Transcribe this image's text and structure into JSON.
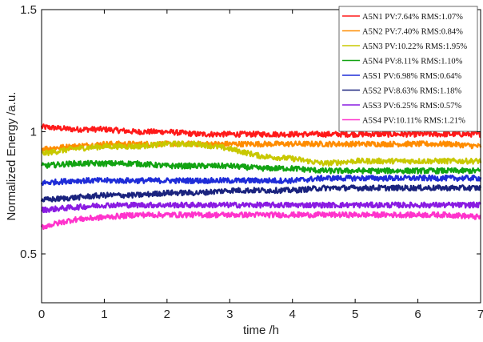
{
  "chart_data": {
    "type": "line",
    "xlabel": "time /h",
    "ylabel": "Normalized Energy /a.u.",
    "xlim": [
      0,
      7
    ],
    "ylim": [
      0.3,
      1.5
    ],
    "xticks": [
      "0",
      "1",
      "2",
      "3",
      "4",
      "5",
      "6",
      "7"
    ],
    "yticks": [
      "0.5",
      "1",
      "1.5"
    ],
    "yticks_values": [
      0.5,
      1,
      1.5
    ],
    "grid": false,
    "legend_position": "top-right",
    "x": [
      0,
      0.5,
      1,
      1.5,
      2,
      2.5,
      3,
      3.5,
      4,
      4.5,
      5,
      5.5,
      6,
      6.5,
      7
    ],
    "series": [
      {
        "name": "A5N1 PV:7.64%  RMS:1.07%",
        "color": "#ff1a1a",
        "values": [
          1.02,
          1.01,
          1.01,
          1.0,
          1.0,
          0.99,
          0.99,
          0.99,
          0.99,
          0.99,
          0.99,
          0.99,
          0.99,
          0.99,
          0.99
        ]
      },
      {
        "name": "A5N2 PV:7.40%  RMS:0.84%",
        "color": "#ff8c00",
        "values": [
          0.93,
          0.94,
          0.95,
          0.95,
          0.95,
          0.95,
          0.95,
          0.95,
          0.95,
          0.95,
          0.95,
          0.95,
          0.95,
          0.95,
          0.94
        ]
      },
      {
        "name": "A5N3 PV:10.22% RMS:1.95%",
        "color": "#c8c800",
        "values": [
          0.91,
          0.93,
          0.94,
          0.94,
          0.95,
          0.95,
          0.93,
          0.9,
          0.89,
          0.87,
          0.88,
          0.88,
          0.88,
          0.88,
          0.88
        ]
      },
      {
        "name": "A5N4 PV:8.11%  RMS:1.10%",
        "color": "#12a312",
        "values": [
          0.86,
          0.87,
          0.87,
          0.87,
          0.86,
          0.86,
          0.86,
          0.85,
          0.85,
          0.84,
          0.84,
          0.84,
          0.84,
          0.84,
          0.84
        ]
      },
      {
        "name": "A5S1 PV:6.98%  RMS:0.64%",
        "color": "#1f2dd8",
        "values": [
          0.79,
          0.8,
          0.8,
          0.8,
          0.8,
          0.8,
          0.8,
          0.8,
          0.8,
          0.81,
          0.81,
          0.81,
          0.81,
          0.81,
          0.81
        ]
      },
      {
        "name": "A5S2 PV:8.63%  RMS:1.18%",
        "color": "#1a237e",
        "values": [
          0.72,
          0.73,
          0.74,
          0.74,
          0.75,
          0.75,
          0.76,
          0.76,
          0.76,
          0.77,
          0.77,
          0.77,
          0.77,
          0.77,
          0.77
        ]
      },
      {
        "name": "A5S3 PV:6.25%  RMS:0.57%",
        "color": "#8a1be2",
        "values": [
          0.68,
          0.69,
          0.7,
          0.7,
          0.7,
          0.7,
          0.7,
          0.7,
          0.7,
          0.7,
          0.7,
          0.7,
          0.7,
          0.7,
          0.7
        ]
      },
      {
        "name": "A5S4 PV:10.11% RMS:1.21%",
        "color": "#ff33cc",
        "values": [
          0.61,
          0.64,
          0.65,
          0.66,
          0.66,
          0.66,
          0.66,
          0.66,
          0.66,
          0.66,
          0.66,
          0.66,
          0.66,
          0.66,
          0.65
        ]
      }
    ]
  }
}
